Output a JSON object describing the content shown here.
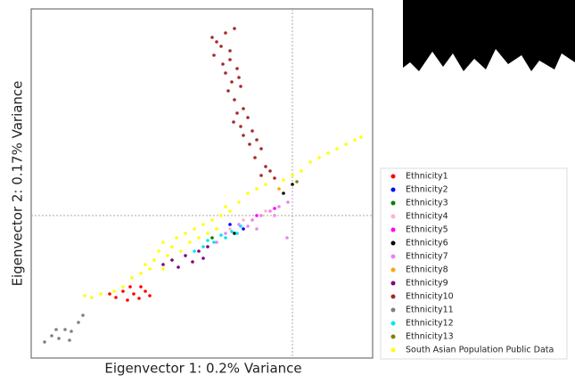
{
  "chart_data": {
    "type": "scatter",
    "xlabel": "Eigenvector 1: 0.2% Variance",
    "ylabel": "Eigenvector 2: 0.17% Variance",
    "xlim": [
      -293,
      90
    ],
    "ylim": [
      -160,
      232
    ],
    "zero_lines": true,
    "legend": "right",
    "series": [
      {
        "name": "Ethnicity1",
        "color": "#ff0000",
        "x": [
          -205,
          -198,
          -190,
          -185,
          -178,
          -172,
          -165,
          -160,
          -182,
          -170
        ],
        "y": [
          -88,
          -92,
          -85,
          -95,
          -88,
          -93,
          -85,
          -90,
          -80,
          -80
        ]
      },
      {
        "name": "Ethnicity2",
        "color": "#0000ff",
        "x": [
          -70,
          -55
        ],
        "y": [
          -10,
          -15
        ]
      },
      {
        "name": "Ethnicity3",
        "color": "#008000",
        "x": [
          -90
        ],
        "y": [
          -25
        ]
      },
      {
        "name": "Ethnicity4",
        "color": "#ffb6c1",
        "x": [
          -70,
          -55,
          -30
        ],
        "y": [
          -15,
          -5,
          5
        ]
      },
      {
        "name": "Ethnicity5",
        "color": "#ff00ff",
        "x": [
          -40,
          -20
        ],
        "y": [
          0,
          8
        ]
      },
      {
        "name": "Ethnicity6",
        "color": "#000000",
        "x": [
          -65,
          -10,
          0
        ],
        "y": [
          -20,
          25,
          35
        ]
      },
      {
        "name": "Ethnicity7",
        "color": "#ee82ee",
        "x": [
          -85,
          -75,
          -60,
          -45,
          -35,
          -25,
          -15,
          -5,
          -40,
          -20,
          -50,
          -6
        ],
        "y": [
          -30,
          -20,
          -10,
          -5,
          0,
          5,
          10,
          15,
          -15,
          0,
          -12,
          -25
        ]
      },
      {
        "name": "Ethnicity8",
        "color": "#ffa500",
        "x": [
          -15
        ],
        "y": [
          30
        ]
      },
      {
        "name": "Ethnicity9",
        "color": "#800080",
        "x": [
          -145,
          -135,
          -128,
          -120,
          -112,
          -105,
          -100,
          -95
        ],
        "y": [
          -55,
          -50,
          -58,
          -45,
          -52,
          -40,
          -48,
          -35
        ]
      },
      {
        "name": "Ethnicity10",
        "color": "#a52a2a",
        "x": [
          -90,
          -85,
          -80,
          -75,
          -70,
          -65,
          -88,
          -78,
          -70,
          -62,
          -75,
          -68,
          -60,
          -72,
          -65,
          -58,
          -62,
          -55,
          -66,
          -58,
          -50,
          -55,
          -45,
          -48,
          -40,
          -35,
          -42,
          -30,
          -25,
          -35,
          -20
        ],
        "y": [
          200,
          195,
          190,
          205,
          185,
          210,
          180,
          170,
          175,
          165,
          160,
          150,
          155,
          140,
          130,
          145,
          115,
          120,
          105,
          100,
          110,
          90,
          95,
          80,
          85,
          75,
          65,
          55,
          50,
          45,
          42
        ]
      },
      {
        "name": "Ethnicity11",
        "color": "#808080",
        "x": [
          -278,
          -270,
          -262,
          -255,
          -248,
          -240,
          -235,
          -250,
          -265
        ],
        "y": [
          -142,
          -135,
          -138,
          -128,
          -130,
          -120,
          -112,
          -140,
          -128
        ]
      },
      {
        "name": "Ethnicity12",
        "color": "#00e5ee",
        "x": [
          -110,
          -100,
          -95,
          -88,
          -80,
          -75,
          -68,
          -62,
          -58
        ],
        "y": [
          -40,
          -35,
          -28,
          -30,
          -22,
          -25,
          -18,
          -20,
          -12
        ]
      },
      {
        "name": "Ethnicity13",
        "color": "#808000",
        "x": [
          5
        ],
        "y": [
          38
        ]
      },
      {
        "name": "South Asian Population Public Data",
        "color": "#ffff00",
        "x": [
          -233,
          -225,
          -215,
          -200,
          -190,
          -180,
          -170,
          -165,
          -155,
          -150,
          -145,
          -140,
          -135,
          -130,
          -125,
          -120,
          -115,
          -110,
          -105,
          -100,
          -95,
          -90,
          -85,
          -80,
          -75,
          -70,
          -60,
          -50,
          -40,
          -30,
          -10,
          0,
          10,
          20,
          30,
          40,
          50,
          60,
          70,
          77,
          -160,
          -145
        ],
        "y": [
          -90,
          -92,
          -88,
          -85,
          -80,
          -70,
          -65,
          -55,
          -50,
          -40,
          -30,
          -45,
          -35,
          -25,
          -40,
          -20,
          -30,
          -15,
          -25,
          -10,
          -20,
          -5,
          -15,
          0,
          10,
          5,
          15,
          25,
          30,
          35,
          40,
          45,
          50,
          60,
          65,
          70,
          75,
          80,
          85,
          88,
          -60,
          -60
        ]
      }
    ]
  }
}
